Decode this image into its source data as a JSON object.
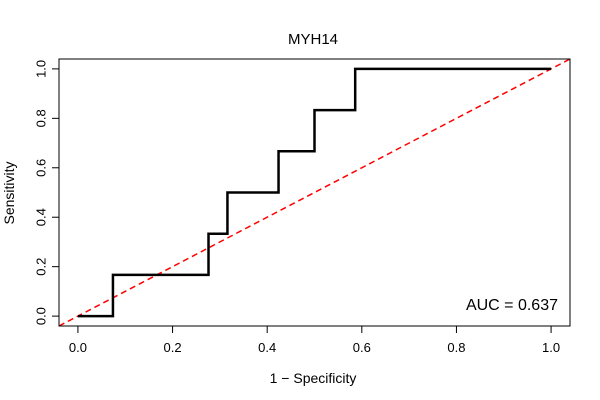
{
  "chart_data": {
    "type": "line",
    "title": "MYH14",
    "xlabel": "1 − Specificity",
    "ylabel": "Sensitivity",
    "xlim": [
      -0.04,
      1.04
    ],
    "ylim": [
      -0.04,
      1.04
    ],
    "x_ticks": [
      0.0,
      0.2,
      0.4,
      0.6,
      0.8,
      1.0
    ],
    "x_tick_labels": [
      "0.0",
      "0.2",
      "0.4",
      "0.6",
      "0.8",
      "1.0"
    ],
    "y_ticks": [
      0.0,
      0.2,
      0.4,
      0.6,
      0.8,
      1.0
    ],
    "y_tick_labels": [
      "0.0",
      "0.2",
      "0.4",
      "0.6",
      "0.8",
      "1.0"
    ],
    "grid": false,
    "annotation": "AUC = 0.637",
    "annotation_placement": "bottom-right",
    "series": [
      {
        "role": "roc-curve",
        "color": "#000000",
        "line_style": "solid",
        "step": true,
        "x": [
          0.0,
          0.074,
          0.074,
          0.276,
          0.276,
          0.316,
          0.316,
          0.424,
          0.424,
          0.5,
          0.5,
          0.586,
          0.586,
          1.0
        ],
        "y": [
          0.0,
          0.0,
          0.167,
          0.167,
          0.333,
          0.333,
          0.5,
          0.5,
          0.667,
          0.667,
          0.833,
          0.833,
          1.0,
          1.0
        ]
      },
      {
        "role": "chance-diagonal",
        "color": "#ff0000",
        "line_style": "dashed",
        "step": false,
        "x": [
          -0.04,
          1.04
        ],
        "y": [
          -0.04,
          1.04
        ]
      }
    ]
  }
}
